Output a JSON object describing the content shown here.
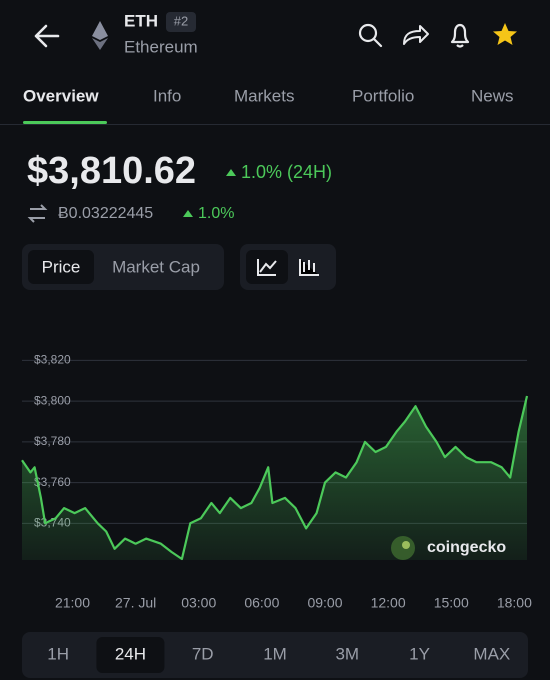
{
  "header": {
    "symbol": "ETH",
    "rank": "#2",
    "name": "Ethereum"
  },
  "tabs": [
    "Overview",
    "Info",
    "Markets",
    "Portfolio",
    "News"
  ],
  "price": {
    "value": "$3,810.62",
    "change": "1.0% (24H)",
    "btc_value": "Ƀ0.03222445",
    "btc_change": "1.0%"
  },
  "toggle": [
    "Price",
    "Market Cap"
  ],
  "chart_data": {
    "type": "area",
    "color": "#4cc95a",
    "grid": true,
    "watermark": "coingecko",
    "x": [
      18.6,
      19.0,
      19.2,
      19.5,
      19.7,
      20.2,
      20.6,
      21.1,
      21.6,
      22.2,
      22.6,
      23.0,
      23.5,
      24.0,
      24.5,
      25.2,
      25.7,
      26.2,
      26.6,
      27.1,
      27.6,
      28.0,
      28.5,
      29.0,
      29.5,
      29.9,
      30.3,
      30.5,
      31.1,
      31.6,
      32.1,
      32.6,
      33.0,
      33.5,
      34.0,
      34.5,
      34.9,
      35.4,
      35.9,
      36.4,
      36.8,
      37.3,
      37.8,
      38.3,
      38.7,
      39.2,
      39.7,
      40.2,
      40.9,
      41.4,
      41.8,
      42.2,
      42.6
    ],
    "values": [
      3771,
      3765,
      3767.5,
      3752.5,
      3740,
      3742.5,
      3747.5,
      3745,
      3747.5,
      3740,
      3736,
      3727.5,
      3732.5,
      3730,
      3732.5,
      3730,
      3726,
      3722.5,
      3740,
      3742.5,
      3750,
      3745,
      3752.5,
      3747.5,
      3750,
      3757.5,
      3767.5,
      3750,
      3752.5,
      3747.5,
      3737.5,
      3745,
      3760,
      3765,
      3762.5,
      3770,
      3780,
      3775,
      3777.5,
      3785,
      3790,
      3797.5,
      3787.5,
      3780,
      3772.5,
      3777.5,
      3772.5,
      3770,
      3770,
      3767.5,
      3762.5,
      3785,
      3802.5
    ],
    "xlim": [
      18.6,
      42.6
    ],
    "ylim": [
      3722,
      3830
    ],
    "xticks": [
      {
        "value": 21,
        "label": "21:00"
      },
      {
        "value": 24,
        "label": "27. Jul"
      },
      {
        "value": 27,
        "label": "03:00"
      },
      {
        "value": 30,
        "label": "06:00"
      },
      {
        "value": 33,
        "label": "09:00"
      },
      {
        "value": 36,
        "label": "12:00"
      },
      {
        "value": 39,
        "label": "15:00"
      },
      {
        "value": 42,
        "label": "18:00"
      }
    ],
    "yticks": [
      {
        "value": 3740,
        "label": "$3,740"
      },
      {
        "value": 3760,
        "label": "$3,760"
      },
      {
        "value": 3780,
        "label": "$3,780"
      },
      {
        "value": 3800,
        "label": "$3,800"
      },
      {
        "value": 3820,
        "label": "$3,820"
      }
    ]
  },
  "ranges": [
    "1H",
    "24H",
    "7D",
    "1M",
    "3M",
    "1Y",
    "MAX"
  ]
}
